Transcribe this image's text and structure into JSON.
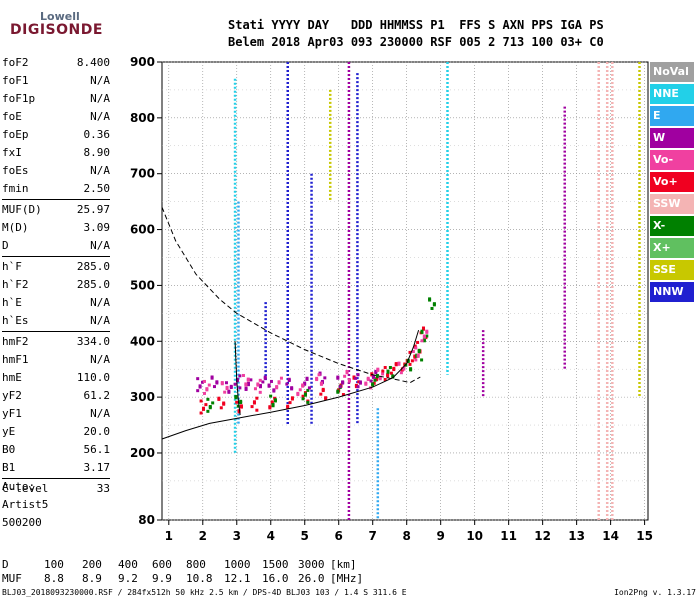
{
  "logo": {
    "top": "Lowell",
    "main": "DIGISONDE"
  },
  "header": {
    "line1": "Stati YYYY DAY   DDD HHMMSS P1  FFS S AXN PPS IGA PS",
    "line2": "Belem 2018 Apr03 093 230000 RSF 005 2 713 100 03+ C0"
  },
  "params": [
    {
      "name": "foF2",
      "value": "8.400"
    },
    {
      "name": "foF1",
      "value": "N/A"
    },
    {
      "name": "foF1p",
      "value": "N/A"
    },
    {
      "name": "foE",
      "value": "N/A"
    },
    {
      "name": "foEp",
      "value": "0.36"
    },
    {
      "name": "fxI",
      "value": "8.90"
    },
    {
      "name": "foEs",
      "value": "N/A"
    },
    {
      "name": "fmin",
      "value": "2.50"
    },
    {
      "name": "MUF(D)",
      "value": "25.97",
      "sep": true
    },
    {
      "name": "M(D)",
      "value": "3.09"
    },
    {
      "name": "D",
      "value": "N/A"
    },
    {
      "name": "h`F",
      "value": "285.0",
      "sep": true
    },
    {
      "name": "h`F2",
      "value": "285.0"
    },
    {
      "name": "h`E",
      "value": "N/A"
    },
    {
      "name": "h`Es",
      "value": "N/A"
    },
    {
      "name": "hmF2",
      "value": "334.0",
      "sep": true
    },
    {
      "name": "hmF1",
      "value": "N/A"
    },
    {
      "name": "hmE",
      "value": "110.0"
    },
    {
      "name": "yF2",
      "value": "61.2"
    },
    {
      "name": "yF1",
      "value": "N/A"
    },
    {
      "name": "yE",
      "value": "20.0"
    },
    {
      "name": "B0",
      "value": "56.1"
    },
    {
      "name": "B1",
      "value": "3.17"
    },
    {
      "name": "C-level",
      "value": "33",
      "sep": true
    }
  ],
  "auto": {
    "label": "Auto:",
    "artist": "Artist5",
    "version": "500200"
  },
  "legend": [
    {
      "label": "NoVal",
      "color": "#a0a0a0"
    },
    {
      "label": "NNE",
      "color": "#22d0e8"
    },
    {
      "label": "E",
      "color": "#30a8f0"
    },
    {
      "label": "W",
      "color": "#a000a0"
    },
    {
      "label": "Vo-",
      "color": "#f040a0"
    },
    {
      "label": "Vo+",
      "color": "#f00020"
    },
    {
      "label": "SSW",
      "color": "#f4b4b4"
    },
    {
      "label": "X-",
      "color": "#008000"
    },
    {
      "label": "X+",
      "color": "#60c060"
    },
    {
      "label": "SSE",
      "color": "#c8c800"
    },
    {
      "label": "NNW",
      "color": "#2020d0"
    }
  ],
  "muf_table": {
    "d_label": "D",
    "muf_label": "MUF",
    "d_values": [
      "100",
      "200",
      "400",
      "600",
      "800",
      "1000",
      "1500",
      "3000",
      "[km]"
    ],
    "muf_values": [
      "8.8",
      "8.9",
      "9.2",
      "9.9",
      "10.8",
      "12.1",
      "16.0",
      "26.0",
      "[MHz]"
    ]
  },
  "footer": {
    "left": "BLJ03_2018093230000.RSF / 284fx512h 50 kHz 2.5 km / DPS-4D BLJ03 103 / 1.4 S 311.6 E",
    "right": "Ion2Png v. 1.3.17"
  },
  "chart_data": {
    "type": "scatter",
    "xlim": [
      0.8,
      15.1
    ],
    "ylim": [
      80,
      900
    ],
    "x_ticks": [
      1,
      2,
      3,
      4,
      5,
      6,
      7,
      8,
      9,
      10,
      11,
      12,
      13,
      14,
      15
    ],
    "y_ticks": [
      80,
      200,
      300,
      400,
      500,
      600,
      700,
      800,
      900
    ],
    "grid": true,
    "curves": [
      {
        "name": "virtual-height-profile",
        "style": "solid",
        "x": [
          0.8,
          1.5,
          2.2,
          3.0,
          4.0,
          5.0,
          6.0,
          7.0,
          7.6,
          8.0,
          8.2,
          8.35
        ],
        "y": [
          225,
          240,
          253,
          262,
          273,
          285,
          300,
          318,
          335,
          360,
          390,
          420
        ]
      },
      {
        "name": "true-height-profile",
        "style": "dashed",
        "x": [
          0.8,
          1.2,
          1.8,
          2.5,
          3.0,
          4.0,
          5.0,
          6.0,
          7.0,
          7.8,
          8.1,
          8.4
        ],
        "y": [
          640,
          580,
          520,
          475,
          450,
          415,
          385,
          360,
          340,
          330,
          326,
          336
        ]
      },
      {
        "name": "dip",
        "style": "solid",
        "x": [
          2.95,
          3.0,
          3.05,
          3.1
        ],
        "y": [
          400,
          330,
          292,
          268
        ]
      }
    ],
    "traces": [
      {
        "name": "F-trace-Vo",
        "color": "#f00020",
        "x": [
          2.0,
          2.5,
          3.0,
          3.5,
          4.0,
          4.5,
          5.0,
          5.5,
          6.0,
          6.5,
          7.0,
          7.3,
          7.6,
          7.9,
          8.1,
          8.3,
          8.45
        ],
        "y": [
          285,
          290,
          287,
          290,
          292,
          295,
          300,
          308,
          318,
          328,
          336,
          345,
          352,
          362,
          372,
          392,
          420
        ]
      },
      {
        "name": "F-trace-X",
        "color": "#008000",
        "x": [
          2.2,
          3.0,
          4.0,
          5.0,
          6.0,
          7.0,
          7.5,
          8.0,
          8.3,
          8.5,
          8.7
        ],
        "y": [
          288,
          293,
          298,
          304,
          320,
          335,
          345,
          360,
          380,
          410,
          470
        ]
      },
      {
        "name": "W-cluster",
        "color": "#a000a0",
        "x": [
          1.9,
          2.3,
          2.7,
          3.0,
          3.3,
          3.7,
          4.0,
          4.5,
          5.0,
          5.5,
          6.0,
          6.5,
          7.0
        ],
        "y": [
          325,
          328,
          322,
          330,
          325,
          332,
          320,
          326,
          330,
          335,
          330,
          332,
          338
        ]
      },
      {
        "name": "Vo-minus",
        "color": "#f040a0",
        "x": [
          2.1,
          2.6,
          3.2,
          3.6,
          4.2,
          4.8,
          5.4,
          6.2,
          6.8,
          7.2,
          7.8,
          8.2,
          8.5
        ],
        "y": [
          320,
          318,
          335,
          322,
          328,
          318,
          332,
          340,
          330,
          342,
          355,
          380,
          410
        ]
      }
    ],
    "vertical_streaks": [
      {
        "x": 2.95,
        "y0": 200,
        "y1": 870,
        "color": "#22d0e8"
      },
      {
        "x": 3.05,
        "y0": 250,
        "y1": 650,
        "color": "#30a8f0"
      },
      {
        "x": 3.85,
        "y0": 330,
        "y1": 470,
        "color": "#2020d0"
      },
      {
        "x": 4.5,
        "y0": 250,
        "y1": 900,
        "color": "#2020d0"
      },
      {
        "x": 5.2,
        "y0": 250,
        "y1": 700,
        "color": "#2020d0"
      },
      {
        "x": 5.75,
        "y0": 650,
        "y1": 850,
        "color": "#c8c800"
      },
      {
        "x": 6.3,
        "y0": 80,
        "y1": 900,
        "color": "#a000a0"
      },
      {
        "x": 6.55,
        "y0": 250,
        "y1": 880,
        "color": "#2020d0"
      },
      {
        "x": 7.15,
        "y0": 80,
        "y1": 280,
        "color": "#30a8f0"
      },
      {
        "x": 9.2,
        "y0": 340,
        "y1": 900,
        "color": "#22d0e8"
      },
      {
        "x": 10.25,
        "y0": 300,
        "y1": 420,
        "color": "#a000a0"
      },
      {
        "x": 12.65,
        "y0": 350,
        "y1": 820,
        "color": "#a000a0"
      },
      {
        "x": 13.65,
        "y0": 80,
        "y1": 900,
        "color": "#f4b4b4"
      },
      {
        "x": 13.9,
        "y0": 80,
        "y1": 900,
        "color": "#f4b4b4"
      },
      {
        "x": 14.05,
        "y0": 80,
        "y1": 900,
        "color": "#f4b4b4"
      },
      {
        "x": 14.85,
        "y0": 300,
        "y1": 900,
        "color": "#c8c800"
      }
    ]
  }
}
